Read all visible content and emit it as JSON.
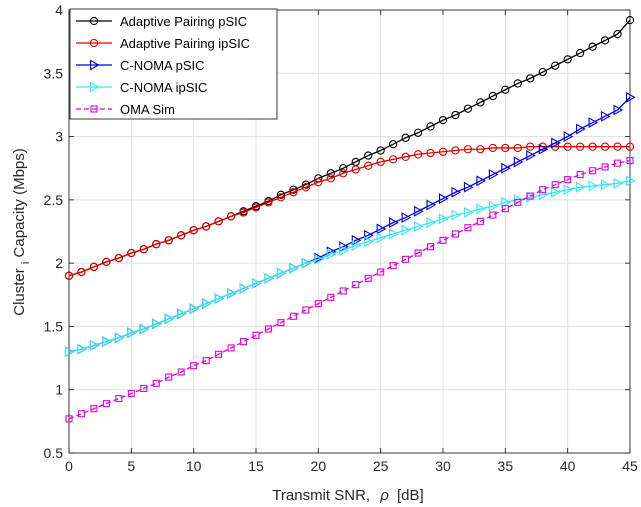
{
  "chart_data": {
    "type": "line",
    "title": "",
    "xlabel_main": "Transmit SNR,",
    "xlabel_symbol": "ρ",
    "xlabel_unit": "[dB]",
    "ylabel_main": "Cluster",
    "ylabel_sub": "i",
    "ylabel_rest": " Capacity (Mbps)",
    "xlim": [
      0,
      45
    ],
    "ylim": [
      0.5,
      4
    ],
    "xticks": [
      "0",
      "5",
      "10",
      "15",
      "20",
      "25",
      "30",
      "35",
      "40",
      "45"
    ],
    "yticks": [
      "0.5",
      "1",
      "1.5",
      "2",
      "2.5",
      "3",
      "3.5",
      "4"
    ],
    "grid": true,
    "legend_position": "top-left",
    "x": [
      0,
      1,
      2,
      3,
      4,
      5,
      6,
      7,
      8,
      9,
      10,
      11,
      12,
      13,
      14,
      15,
      16,
      17,
      18,
      19,
      20,
      21,
      22,
      23,
      24,
      25,
      26,
      27,
      28,
      29,
      30,
      31,
      32,
      33,
      34,
      35,
      36,
      37,
      38,
      39,
      40,
      41,
      42,
      43,
      44,
      45
    ],
    "series": [
      {
        "name": "Adaptive Pairing pSIC",
        "color": "#000000",
        "marker": "circle",
        "line_style": "solid",
        "values": [
          1.9,
          1.93,
          1.97,
          2.01,
          2.04,
          2.08,
          2.11,
          2.15,
          2.18,
          2.22,
          2.26,
          2.29,
          2.33,
          2.37,
          2.41,
          2.45,
          2.49,
          2.54,
          2.58,
          2.62,
          2.67,
          2.71,
          2.75,
          2.8,
          2.85,
          2.89,
          2.94,
          2.99,
          3.03,
          3.08,
          3.13,
          3.17,
          3.22,
          3.27,
          3.32,
          3.37,
          3.42,
          3.46,
          3.51,
          3.56,
          3.61,
          3.66,
          3.71,
          3.76,
          3.81,
          3.92
        ]
      },
      {
        "name": "Adaptive Pairing ipSIC",
        "color": "#e00000",
        "marker": "circle",
        "line_style": "solid",
        "values": [
          1.9,
          1.93,
          1.97,
          2.01,
          2.04,
          2.08,
          2.11,
          2.15,
          2.18,
          2.22,
          2.26,
          2.29,
          2.33,
          2.37,
          2.4,
          2.44,
          2.48,
          2.52,
          2.56,
          2.6,
          2.64,
          2.67,
          2.71,
          2.74,
          2.77,
          2.8,
          2.82,
          2.84,
          2.86,
          2.87,
          2.88,
          2.89,
          2.9,
          2.9,
          2.91,
          2.91,
          2.91,
          2.92,
          2.92,
          2.92,
          2.92,
          2.92,
          2.92,
          2.92,
          2.92,
          2.92
        ]
      },
      {
        "name": "C-NOMA pSIC",
        "color": "#0000dd",
        "marker": "triangle-right",
        "line_style": "solid",
        "values": [
          1.3,
          1.32,
          1.35,
          1.38,
          1.41,
          1.45,
          1.48,
          1.52,
          1.56,
          1.6,
          1.64,
          1.68,
          1.72,
          1.76,
          1.8,
          1.84,
          1.88,
          1.92,
          1.96,
          2.0,
          2.04,
          2.09,
          2.13,
          2.18,
          2.22,
          2.27,
          2.32,
          2.36,
          2.41,
          2.46,
          2.51,
          2.56,
          2.6,
          2.65,
          2.7,
          2.75,
          2.8,
          2.85,
          2.9,
          2.95,
          3.0,
          3.06,
          3.11,
          3.16,
          3.21,
          3.31
        ]
      },
      {
        "name": "C-NOMA ipSIC",
        "color": "#33e6f2",
        "marker": "triangle-right",
        "line_style": "solid",
        "values": [
          1.3,
          1.32,
          1.35,
          1.38,
          1.41,
          1.45,
          1.48,
          1.52,
          1.56,
          1.6,
          1.64,
          1.68,
          1.72,
          1.76,
          1.8,
          1.84,
          1.88,
          1.92,
          1.96,
          2.0,
          2.03,
          2.07,
          2.1,
          2.14,
          2.17,
          2.2,
          2.23,
          2.26,
          2.29,
          2.32,
          2.35,
          2.38,
          2.4,
          2.43,
          2.45,
          2.48,
          2.5,
          2.52,
          2.54,
          2.56,
          2.58,
          2.6,
          2.61,
          2.62,
          2.63,
          2.65
        ]
      },
      {
        "name": "OMA Sim",
        "color": "#e000e0",
        "marker": "square",
        "line_style": "dashed",
        "values": [
          0.77,
          0.81,
          0.85,
          0.89,
          0.93,
          0.97,
          1.01,
          1.05,
          1.1,
          1.14,
          1.19,
          1.23,
          1.28,
          1.33,
          1.38,
          1.43,
          1.48,
          1.53,
          1.58,
          1.63,
          1.68,
          1.73,
          1.78,
          1.83,
          1.88,
          1.93,
          1.98,
          2.03,
          2.08,
          2.13,
          2.18,
          2.23,
          2.28,
          2.33,
          2.38,
          2.43,
          2.48,
          2.53,
          2.58,
          2.62,
          2.66,
          2.7,
          2.73,
          2.76,
          2.79,
          2.81
        ]
      }
    ]
  }
}
